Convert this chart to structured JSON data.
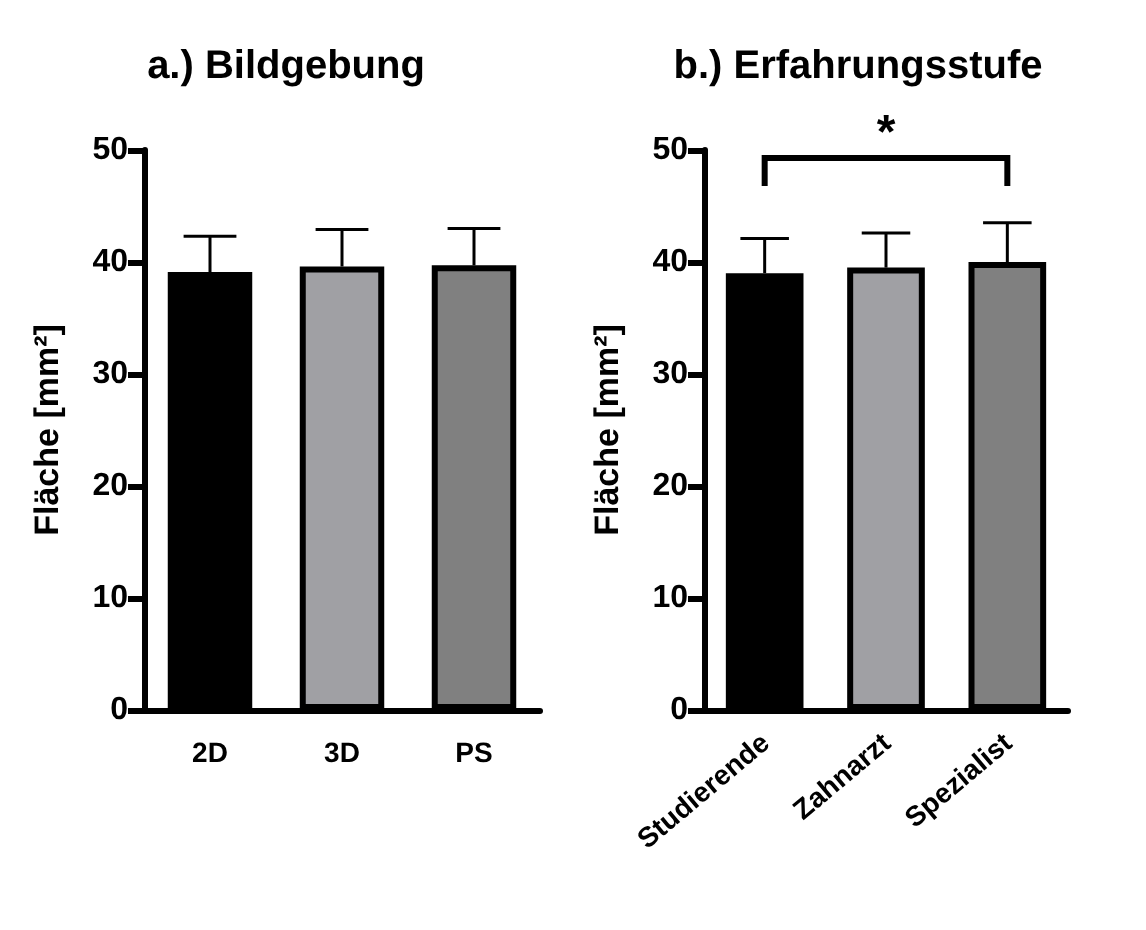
{
  "chart_data": [
    {
      "type": "bar",
      "title": "a.) Bildgebung",
      "ylabel": "Fläche [mm²]",
      "categories": [
        "2D",
        "3D",
        "PS"
      ],
      "values": [
        39.1,
        39.6,
        39.7
      ],
      "colors": [
        "#000000",
        "#a0a0a4",
        "#808080"
      ],
      "errors": [
        [
          39.1,
          42.3
        ],
        [
          39.6,
          42.9
        ],
        [
          39.7,
          43.0
        ]
      ],
      "ylim": [
        0,
        50
      ],
      "yticks": [
        0,
        10,
        20,
        30,
        40,
        50
      ],
      "grid": false
    },
    {
      "type": "bar",
      "title": "b.) Erfahrungsstufe",
      "ylabel": "Fläche [mm²]",
      "categories": [
        "Studierende",
        "Zahnarzt",
        "Spezialist"
      ],
      "values": [
        39.0,
        39.5,
        40.0
      ],
      "colors": [
        "#000000",
        "#a0a0a4",
        "#808080"
      ],
      "errors": [
        [
          39.0,
          42.1
        ],
        [
          39.5,
          42.6
        ],
        [
          40.0,
          43.5
        ]
      ],
      "ylim": [
        0,
        50
      ],
      "yticks": [
        0,
        10,
        20,
        30,
        40,
        50
      ],
      "grid": false,
      "annotations": [
        "*"
      ]
    }
  ]
}
